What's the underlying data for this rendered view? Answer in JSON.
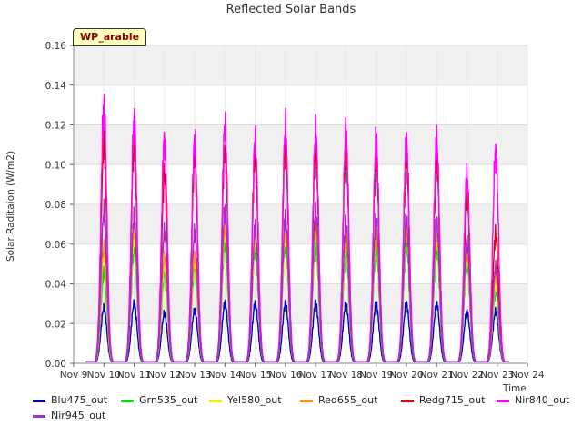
{
  "chart_data": {
    "type": "line",
    "title": "Reflected Solar Bands",
    "xlabel": "Time",
    "ylabel": "Solar Raditaion (W/m2)",
    "annotation": "WP_arable",
    "xlim": [
      9,
      24
    ],
    "ylim": [
      0,
      0.16
    ],
    "x_ticks": [
      9,
      10,
      11,
      12,
      13,
      14,
      15,
      16,
      17,
      18,
      19,
      20,
      21,
      22,
      23,
      24
    ],
    "x_tick_labels": [
      "Nov 9",
      "Nov 10",
      "Nov 11",
      "Nov 12",
      "Nov 13",
      "Nov 14",
      "Nov 15",
      "Nov 16",
      "Nov 17",
      "Nov 18",
      "Nov 19",
      "Nov 20",
      "Nov 21",
      "Nov 22",
      "Nov 23",
      "Nov 24"
    ],
    "y_ticks": [
      0.0,
      0.02,
      0.04,
      0.06,
      0.08,
      0.1,
      0.12,
      0.14,
      0.16
    ],
    "y_tick_labels": [
      "0.00",
      "0.02",
      "0.04",
      "0.06",
      "0.08",
      "0.10",
      "0.12",
      "0.14",
      "0.16"
    ],
    "grid": true,
    "background_bands": true,
    "legend_position": "bottom",
    "daily_peak_centers": [
      10.0,
      11.0,
      12.0,
      13.0,
      14.0,
      15.0,
      16.0,
      17.0,
      18.0,
      19.0,
      20.0,
      21.0,
      22.0,
      22.95
    ],
    "series": [
      {
        "name": "Blu475_out",
        "color": "#0000cc",
        "peaks": [
          0.028,
          0.03,
          0.025,
          0.027,
          0.03,
          0.03,
          0.03,
          0.03,
          0.03,
          0.03,
          0.03,
          0.03,
          0.026,
          0.026
        ]
      },
      {
        "name": "Grn535_out",
        "color": "#00dd00",
        "peaks": [
          0.046,
          0.058,
          0.045,
          0.048,
          0.06,
          0.058,
          0.06,
          0.06,
          0.056,
          0.058,
          0.06,
          0.058,
          0.05,
          0.036
        ]
      },
      {
        "name": "Yel580_out",
        "color": "#eeee00",
        "peaks": [
          0.056,
          0.064,
          0.05,
          0.052,
          0.066,
          0.062,
          0.064,
          0.066,
          0.062,
          0.064,
          0.066,
          0.064,
          0.054,
          0.04
        ]
      },
      {
        "name": "Red655_out",
        "color": "#ff9900",
        "peaks": [
          0.058,
          0.068,
          0.054,
          0.054,
          0.07,
          0.066,
          0.068,
          0.07,
          0.066,
          0.068,
          0.068,
          0.068,
          0.058,
          0.044
        ]
      },
      {
        "name": "Redg715_out",
        "color": "#dd0000",
        "peaks": [
          0.111,
          0.11,
          0.095,
          0.103,
          0.108,
          0.104,
          0.109,
          0.108,
          0.107,
          0.104,
          0.103,
          0.102,
          0.085,
          0.065
        ]
      },
      {
        "name": "Nir840_out",
        "color": "#ff00ff",
        "peaks": [
          0.131,
          0.122,
          0.113,
          0.112,
          0.119,
          0.113,
          0.118,
          0.117,
          0.116,
          0.112,
          0.112,
          0.112,
          0.095,
          0.107
        ]
      },
      {
        "name": "Nir945_out",
        "color": "#9933cc",
        "peaks": [
          0.076,
          0.074,
          0.066,
          0.066,
          0.077,
          0.068,
          0.074,
          0.076,
          0.07,
          0.073,
          0.072,
          0.072,
          0.062,
          0.048
        ]
      }
    ]
  }
}
